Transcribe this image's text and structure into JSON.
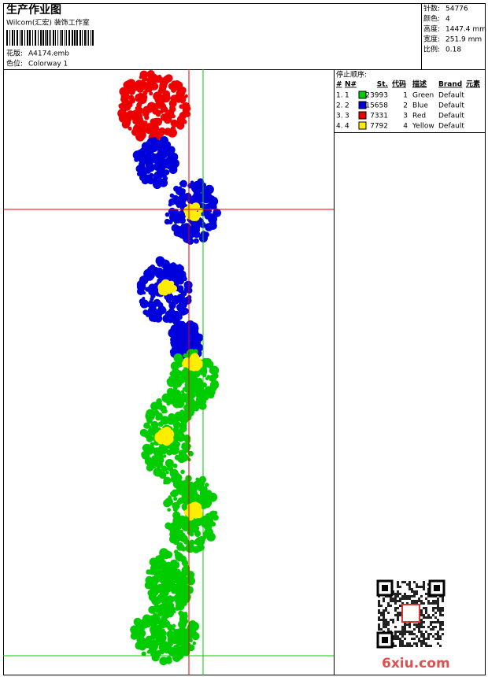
{
  "header": {
    "title": "生产作业图",
    "studio": "Wilcom(汇宏) 装饰工作室",
    "design_label": "花版:",
    "design": "A4174.emb",
    "colorway_label": "色位:",
    "colorway": "Colorway 1"
  },
  "info": [
    {
      "label": "针数:",
      "value": "54776"
    },
    {
      "label": "颜色:",
      "value": "4"
    },
    {
      "label": "高度:",
      "value": "1447.4 mm"
    },
    {
      "label": "宽度:",
      "value": "251.9 mm"
    },
    {
      "label": "比例:",
      "value": "0.18"
    }
  ],
  "stop_sequence": {
    "title": "停止顺序:",
    "columns": [
      "#",
      "N#",
      "St.",
      "代码",
      "描述",
      "Brand",
      "元素"
    ],
    "rows": [
      {
        "index": "1.",
        "needle": "1",
        "color": "#00cc00",
        "stitches": 23993,
        "code": "1",
        "description": "Green",
        "brand": "Default"
      },
      {
        "index": "2.",
        "needle": "2",
        "color": "#0000dd",
        "stitches": 15658,
        "code": "2",
        "description": "Blue",
        "brand": "Default"
      },
      {
        "index": "3.",
        "needle": "3",
        "color": "#ee0000",
        "stitches": 7331,
        "code": "3",
        "description": "Red",
        "brand": "Default"
      },
      {
        "index": "4.",
        "needle": "4",
        "color": "#ffee00",
        "stitches": 7792,
        "code": "4",
        "description": "Yellow",
        "brand": "Default"
      }
    ]
  },
  "watermark": "6xiu.com"
}
